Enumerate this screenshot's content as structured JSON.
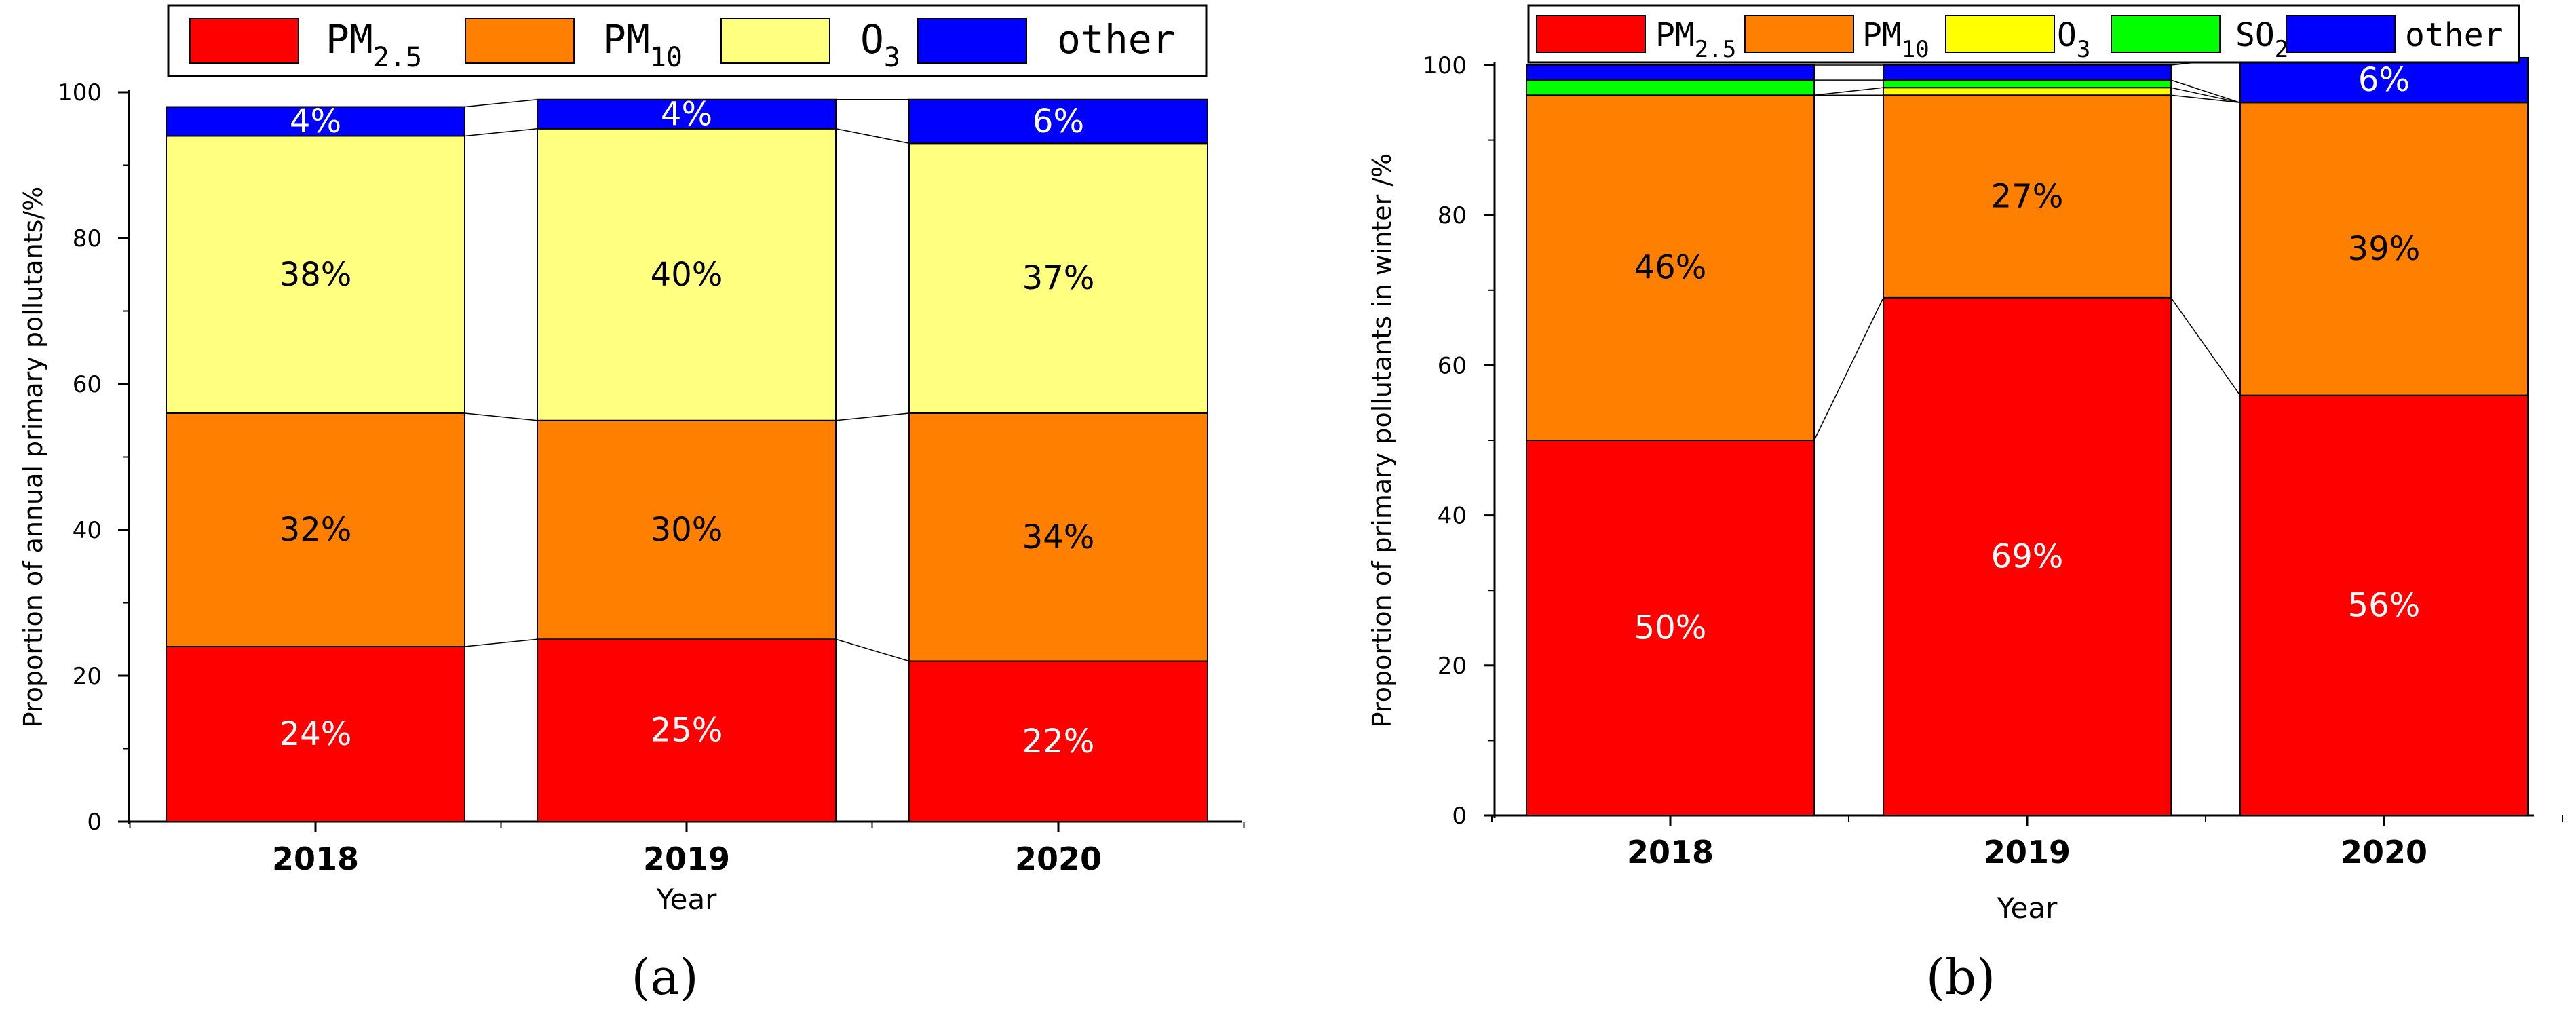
{
  "chart_data": [
    {
      "id": "a",
      "type": "bar",
      "stacked": true,
      "caption": "(a)",
      "categories": [
        "2018",
        "2019",
        "2020"
      ],
      "xlabel": "Year",
      "ylabel": "Proportion of annual primary pollutants/%",
      "ylim": [
        0,
        100
      ],
      "yticks": [
        "0",
        "20",
        "40",
        "60",
        "80",
        "100"
      ],
      "series": [
        {
          "name": "PM2.5",
          "legend_main": "PM",
          "legend_sub": "2.5",
          "color": "#ff0000",
          "values": [
            24,
            25,
            22
          ],
          "labels": [
            "24%",
            "25%",
            "22%"
          ],
          "label_color": "#ffffff"
        },
        {
          "name": "PM10",
          "legend_main": "PM",
          "legend_sub": "10",
          "color": "#ff8000",
          "values": [
            32,
            30,
            34
          ],
          "labels": [
            "32%",
            "30%",
            "34%"
          ],
          "label_color": "#000000"
        },
        {
          "name": "O3",
          "legend_main": "O",
          "legend_sub": "3",
          "color": "#ffff80",
          "values": [
            38,
            40,
            37
          ],
          "labels": [
            "38%",
            "40%",
            "37%"
          ],
          "label_color": "#000000"
        },
        {
          "name": "other",
          "legend_main": "other",
          "legend_sub": "",
          "color": "#0000ff",
          "values": [
            4,
            4,
            6
          ],
          "labels": [
            "4%",
            "4%",
            "6%"
          ],
          "label_color": "#ffffff"
        }
      ]
    },
    {
      "id": "b",
      "type": "bar",
      "stacked": true,
      "caption": "(b)",
      "categories": [
        "2018",
        "2019",
        "2020"
      ],
      "xlabel": "Year",
      "ylabel": "Proportion of primary pollutants in winter /%",
      "ylim": [
        0,
        100
      ],
      "yticks": [
        "0",
        "20",
        "40",
        "60",
        "80",
        "100"
      ],
      "series": [
        {
          "name": "PM2.5",
          "legend_main": "PM",
          "legend_sub": "2.5",
          "color": "#ff0000",
          "values": [
            50,
            69,
            56
          ],
          "labels": [
            "50%",
            "69%",
            "56%"
          ],
          "label_color": "#ffffff"
        },
        {
          "name": "PM10",
          "legend_main": "PM",
          "legend_sub": "10",
          "color": "#ff8000",
          "values": [
            46,
            27,
            39
          ],
          "labels": [
            "46%",
            "27%",
            "39%"
          ],
          "label_color": "#000000"
        },
        {
          "name": "O3",
          "legend_main": "O",
          "legend_sub": "3",
          "color": "#ffff00",
          "values": [
            0,
            1,
            0
          ],
          "labels": [
            "",
            "",
            ""
          ],
          "label_color": "#000000"
        },
        {
          "name": "SO2",
          "legend_main": "SO",
          "legend_sub": "2",
          "color": "#00ff00",
          "values": [
            2,
            1,
            0
          ],
          "labels": [
            "",
            "",
            ""
          ],
          "label_color": "#000000"
        },
        {
          "name": "other",
          "legend_main": "other",
          "legend_sub": "",
          "color": "#0000ff",
          "values": [
            2,
            2,
            6
          ],
          "labels": [
            "",
            "",
            "6%"
          ],
          "label_color": "#ffffff"
        }
      ]
    }
  ]
}
